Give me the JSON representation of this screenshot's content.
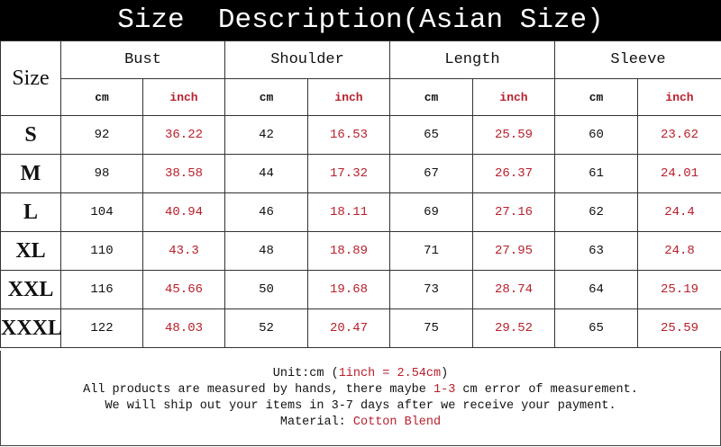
{
  "title": "Size  Description(Asian Size)",
  "size_header": "Size",
  "groups": [
    "Bust",
    "Shoulder",
    "Length",
    "Sleeve"
  ],
  "unit_cm": "cm",
  "unit_inch": "inch",
  "rows": [
    {
      "size": "S",
      "values": [
        "92",
        "36.22",
        "42",
        "16.53",
        "65",
        "25.59",
        "60",
        "23.62"
      ]
    },
    {
      "size": "M",
      "values": [
        "98",
        "38.58",
        "44",
        "17.32",
        "67",
        "26.37",
        "61",
        "24.01"
      ]
    },
    {
      "size": "L",
      "values": [
        "104",
        "40.94",
        "46",
        "18.11",
        "69",
        "27.16",
        "62",
        "24.4"
      ]
    },
    {
      "size": "XL",
      "values": [
        "110",
        "43.3",
        "48",
        "18.89",
        "71",
        "27.95",
        "63",
        "24.8"
      ]
    },
    {
      "size": "XXL",
      "values": [
        "116",
        "45.66",
        "50",
        "19.68",
        "73",
        "28.74",
        "64",
        "25.19"
      ]
    },
    {
      "size": "XXXL",
      "values": [
        "122",
        "48.03",
        "52",
        "20.47",
        "75",
        "29.52",
        "65",
        "25.59"
      ]
    }
  ],
  "footer": {
    "unit_prefix": "Unit:cm (",
    "unit_conversion": "1inch = 2.54cm",
    "unit_suffix": ")",
    "measure_prefix": "All products are measured by hands, there maybe ",
    "measure_error": "1-3",
    "measure_suffix": " cm error of measurement.",
    "shipping": "We will ship out your items in 3-7 days after we receive your payment.",
    "material_label": "Material: ",
    "material_value": "Cotton Blend"
  },
  "colors": {
    "accent_red": "#b8202c",
    "title_bg": "#000000"
  }
}
